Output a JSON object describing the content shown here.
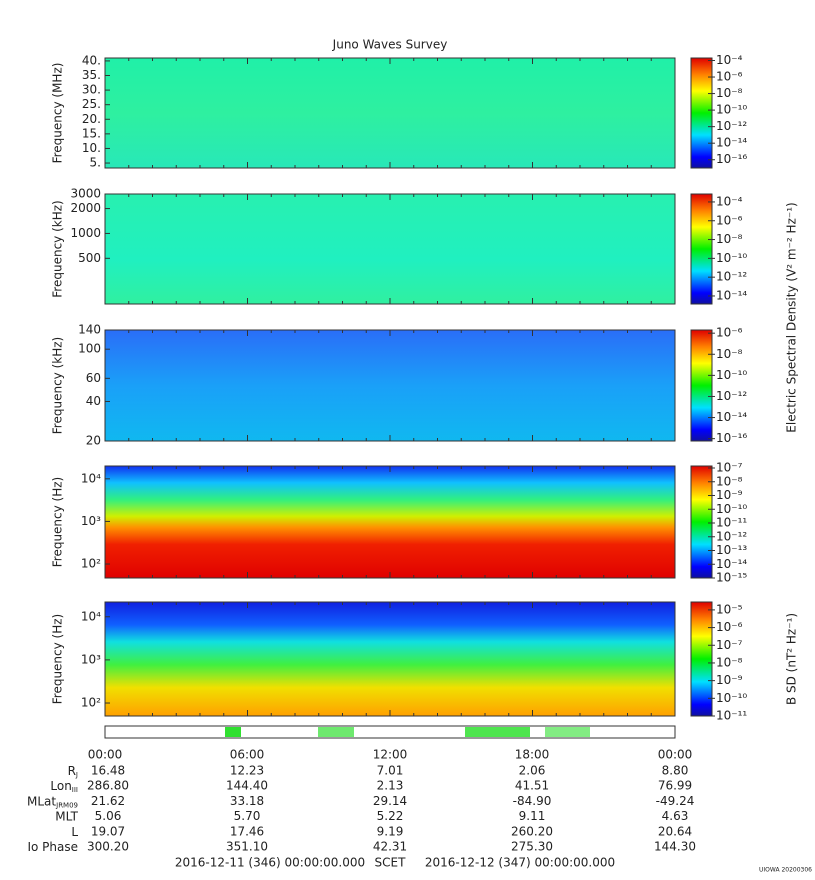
{
  "title": "Juno Waves Survey",
  "chart_data": [
    {
      "type": "spectrogram",
      "ylabel": "Frequency (MHz)",
      "ylog": false,
      "ylim": [
        3.3,
        41
      ],
      "yticks": [
        {
          "value": 5,
          "label": "5."
        },
        {
          "value": 10,
          "label": "10."
        },
        {
          "value": 15,
          "label": "15."
        },
        {
          "value": 20,
          "label": "20."
        },
        {
          "value": 25,
          "label": "25."
        },
        {
          "value": 30,
          "label": "30."
        },
        {
          "value": 35,
          "label": "35."
        },
        {
          "value": 40,
          "label": "40."
        }
      ],
      "clim": [
        1e-17,
        0.0002
      ],
      "cticks": [
        {
          "value": 0.0001,
          "label": "10⁻⁴"
        },
        {
          "value": 1e-06,
          "label": "10⁻⁶"
        },
        {
          "value": 1e-08,
          "label": "10⁻⁸"
        },
        {
          "value": 1e-10,
          "label": "10⁻¹⁰"
        },
        {
          "value": 1e-12,
          "label": "10⁻¹²"
        },
        {
          "value": 1e-14,
          "label": "10⁻¹⁴"
        },
        {
          "value": 1e-16,
          "label": "10⁻¹⁶"
        }
      ]
    },
    {
      "type": "spectrogram",
      "ylabel": "Frequency (kHz)",
      "ylog": true,
      "ylim": [
        140,
        3000
      ],
      "yticks": [
        500,
        1000,
        2000,
        3000
      ],
      "clim": [
        1.4e-15,
        0.0007
      ],
      "cticks": [
        {
          "value": 0.0001,
          "label": "10⁻⁴"
        },
        {
          "value": 1e-06,
          "label": "10⁻⁶"
        },
        {
          "value": 1e-08,
          "label": "10⁻⁸"
        },
        {
          "value": 1e-10,
          "label": "10⁻¹⁰"
        },
        {
          "value": 1e-12,
          "label": "10⁻¹²"
        },
        {
          "value": 1e-14,
          "label": "10⁻¹⁴"
        }
      ],
      "clabel": "Electric Spectral Density (V² m⁻² Hz⁻¹)"
    },
    {
      "type": "spectrogram",
      "ylabel": "Frequency (kHz)",
      "ylog": true,
      "ylim": [
        20,
        140
      ],
      "yticks": [
        20,
        40,
        60,
        100,
        140
      ],
      "clim": [
        6e-17,
        2e-06
      ],
      "cticks": [
        {
          "value": 1e-06,
          "label": "10⁻⁶"
        },
        {
          "value": 1e-08,
          "label": "10⁻⁸"
        },
        {
          "value": 1e-10,
          "label": "10⁻¹⁰"
        },
        {
          "value": 1e-12,
          "label": "10⁻¹²"
        },
        {
          "value": 1e-14,
          "label": "10⁻¹⁴"
        },
        {
          "value": 1e-16,
          "label": "10⁻¹⁶"
        }
      ]
    },
    {
      "type": "spectrogram",
      "ylabel": "Frequency (Hz)",
      "ylog": true,
      "ylim": [
        47,
        20000
      ],
      "yticks": [
        {
          "value": 100,
          "label": "10²"
        },
        {
          "value": 1000,
          "label": "10³"
        },
        {
          "value": 10000,
          "label": "10⁴"
        }
      ],
      "clim": [
        1e-15,
        1.4e-07
      ],
      "cticks": [
        {
          "value": 1e-07,
          "label": "10⁻⁷"
        },
        {
          "value": 1e-08,
          "label": "10⁻⁸"
        },
        {
          "value": 1e-09,
          "label": "10⁻⁹"
        },
        {
          "value": 1e-10,
          "label": "10⁻¹⁰"
        },
        {
          "value": 1e-11,
          "label": "10⁻¹¹"
        },
        {
          "value": 1e-12,
          "label": "10⁻¹²"
        },
        {
          "value": 1e-13,
          "label": "10⁻¹³"
        },
        {
          "value": 1e-14,
          "label": "10⁻¹⁴"
        },
        {
          "value": 1e-15,
          "label": "10⁻¹⁵"
        }
      ]
    },
    {
      "type": "spectrogram",
      "ylabel": "Frequency (Hz)",
      "ylog": true,
      "ylim": [
        50,
        22000
      ],
      "yticks": [
        {
          "value": 100,
          "label": "10²"
        },
        {
          "value": 1000,
          "label": "10³"
        },
        {
          "value": 10000,
          "label": "10⁴"
        }
      ],
      "clim": [
        1e-11,
        2.8e-05
      ],
      "cticks": [
        {
          "value": 1e-05,
          "label": "10⁻⁵"
        },
        {
          "value": 1e-06,
          "label": "10⁻⁶"
        },
        {
          "value": 1e-07,
          "label": "10⁻⁷"
        },
        {
          "value": 1e-08,
          "label": "10⁻⁸"
        },
        {
          "value": 1e-09,
          "label": "10⁻⁹"
        },
        {
          "value": 1e-10,
          "label": "10⁻¹⁰"
        },
        {
          "value": 1e-11,
          "label": "10⁻¹¹"
        }
      ],
      "clabel": "B SD (nT² Hz⁻¹)"
    }
  ],
  "ephemeris": {
    "times": [
      "00:00",
      "06:00",
      "12:00",
      "18:00",
      "00:00"
    ],
    "rows": [
      {
        "label": "R",
        "sub": "J",
        "values": [
          "16.48",
          "12.23",
          "7.01",
          "2.06",
          "8.80"
        ]
      },
      {
        "label": "Lon",
        "sub": "III",
        "values": [
          "286.80",
          "144.40",
          "2.13",
          "41.51",
          "76.99"
        ]
      },
      {
        "label": "MLat",
        "sub": "JRM09",
        "values": [
          "21.62",
          "33.18",
          "29.14",
          "-84.90",
          "-49.24"
        ]
      },
      {
        "label": "MLT",
        "values": [
          "5.06",
          "5.70",
          "5.22",
          "9.11",
          "4.63"
        ]
      },
      {
        "label": "L",
        "values": [
          "19.07",
          "17.46",
          "9.19",
          "260.20",
          "20.64"
        ]
      },
      {
        "label": "Io Phase",
        "values": [
          "300.20",
          "351.10",
          "42.31",
          "275.30",
          "144.30"
        ]
      }
    ],
    "footer": [
      "2016-12-11 (346) 00:00:00.000",
      "SCET",
      "2016-12-12 (347) 00:00:00.000"
    ]
  },
  "stamp": "UIOWA 20200306"
}
